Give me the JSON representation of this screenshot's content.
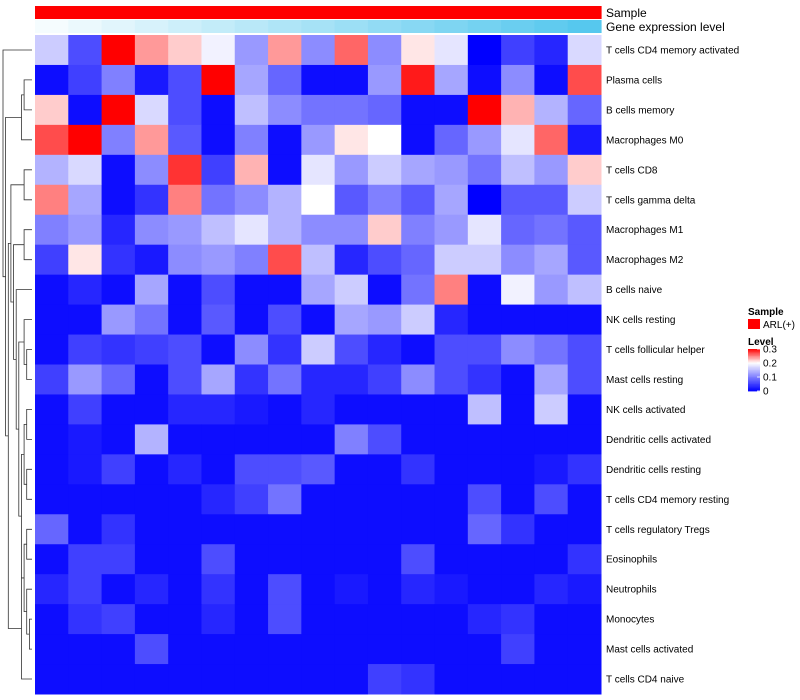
{
  "chart_data": {
    "type": "heatmap",
    "annotations": [
      {
        "name": "Sample",
        "kind": "categorical",
        "color": "#ff0000"
      },
      {
        "name": "Gene expression level",
        "kind": "gradient",
        "from": "#ffffff",
        "to": "#56c8ee"
      }
    ],
    "rows": [
      {
        "label": "T cells CD4 memory activated",
        "values": [
          0.16,
          0.06,
          0.3,
          0.24,
          0.22,
          0.19,
          0.12,
          0.24,
          0.11,
          0.26,
          0.11,
          0.21,
          0.18,
          0.0,
          0.05,
          0.03,
          0.17
        ]
      },
      {
        "label": "Plasma cells",
        "values": [
          0.01,
          0.05,
          0.1,
          0.02,
          0.06,
          0.3,
          0.13,
          0.08,
          0.01,
          0.01,
          0.12,
          0.29,
          0.13,
          0.01,
          0.11,
          0.01,
          0.27
        ]
      },
      {
        "label": "B cells memory",
        "values": [
          0.22,
          0.01,
          0.3,
          0.17,
          0.06,
          0.01,
          0.15,
          0.11,
          0.09,
          0.09,
          0.08,
          0.01,
          0.01,
          0.3,
          0.23,
          0.14,
          0.08
        ]
      },
      {
        "label": "Macrophages M0",
        "values": [
          0.27,
          0.3,
          0.1,
          0.24,
          0.07,
          0.01,
          0.1,
          0.01,
          0.12,
          0.21,
          0.2,
          0.01,
          0.08,
          0.12,
          0.18,
          0.26,
          0.02
        ]
      },
      {
        "label": "T cells CD8",
        "values": [
          0.14,
          0.17,
          0.01,
          0.11,
          0.28,
          0.05,
          0.23,
          0.01,
          0.18,
          0.12,
          0.16,
          0.13,
          0.12,
          0.09,
          0.15,
          0.12,
          0.22
        ]
      },
      {
        "label": "T cells gamma delta",
        "values": [
          0.25,
          0.13,
          0.01,
          0.04,
          0.25,
          0.09,
          0.11,
          0.14,
          0.2,
          0.07,
          0.1,
          0.07,
          0.13,
          0.0,
          0.07,
          0.07,
          0.16
        ]
      },
      {
        "label": "Macrophages M1",
        "values": [
          0.1,
          0.12,
          0.03,
          0.11,
          0.12,
          0.15,
          0.18,
          0.14,
          0.11,
          0.11,
          0.22,
          0.1,
          0.12,
          0.18,
          0.08,
          0.09,
          0.07
        ]
      },
      {
        "label": "Macrophages M2",
        "values": [
          0.05,
          0.21,
          0.04,
          0.02,
          0.11,
          0.12,
          0.1,
          0.27,
          0.15,
          0.03,
          0.06,
          0.08,
          0.16,
          0.16,
          0.11,
          0.13,
          0.07
        ]
      },
      {
        "label": "B cells naive",
        "values": [
          0.01,
          0.03,
          0.01,
          0.13,
          0.01,
          0.06,
          0.01,
          0.01,
          0.13,
          0.16,
          0.01,
          0.09,
          0.25,
          0.01,
          0.19,
          0.12,
          0.15
        ]
      },
      {
        "label": "NK cells resting",
        "values": [
          0.01,
          0.01,
          0.12,
          0.09,
          0.01,
          0.07,
          0.01,
          0.06,
          0.01,
          0.13,
          0.12,
          0.16,
          0.03,
          0.01,
          0.01,
          0.01,
          0.01
        ]
      },
      {
        "label": "T cells follicular helper",
        "values": [
          0.01,
          0.05,
          0.04,
          0.05,
          0.06,
          0.01,
          0.11,
          0.04,
          0.16,
          0.06,
          0.03,
          0.01,
          0.06,
          0.06,
          0.11,
          0.09,
          0.06
        ]
      },
      {
        "label": "Mast cells resting",
        "values": [
          0.05,
          0.12,
          0.08,
          0.01,
          0.06,
          0.13,
          0.04,
          0.09,
          0.03,
          0.03,
          0.05,
          0.11,
          0.06,
          0.04,
          0.01,
          0.13,
          0.06
        ]
      },
      {
        "label": "NK cells activated",
        "values": [
          0.01,
          0.05,
          0.01,
          0.01,
          0.03,
          0.03,
          0.02,
          0.01,
          0.03,
          0.01,
          0.01,
          0.01,
          0.01,
          0.15,
          0.01,
          0.16,
          0.01
        ]
      },
      {
        "label": "Dendritic cells activated",
        "values": [
          0.01,
          0.02,
          0.01,
          0.14,
          0.01,
          0.01,
          0.01,
          0.01,
          0.01,
          0.1,
          0.06,
          0.01,
          0.01,
          0.01,
          0.01,
          0.01,
          0.01
        ]
      },
      {
        "label": "Dendritic cells resting",
        "values": [
          0.01,
          0.02,
          0.05,
          0.01,
          0.03,
          0.01,
          0.06,
          0.06,
          0.07,
          0.01,
          0.01,
          0.04,
          0.01,
          0.01,
          0.01,
          0.02,
          0.04
        ]
      },
      {
        "label": "T cells CD4 memory resting",
        "values": [
          0.01,
          0.01,
          0.01,
          0.01,
          0.01,
          0.03,
          0.05,
          0.09,
          0.01,
          0.01,
          0.01,
          0.01,
          0.01,
          0.06,
          0.01,
          0.06,
          0.01
        ]
      },
      {
        "label": "T cells regulatory  Tregs",
        "values": [
          0.08,
          0.01,
          0.04,
          0.01,
          0.01,
          0.01,
          0.01,
          0.01,
          0.01,
          0.01,
          0.01,
          0.01,
          0.01,
          0.08,
          0.04,
          0.01,
          0.01
        ]
      },
      {
        "label": "Eosinophils",
        "values": [
          0.01,
          0.05,
          0.05,
          0.01,
          0.01,
          0.06,
          0.01,
          0.01,
          0.01,
          0.01,
          0.01,
          0.06,
          0.01,
          0.01,
          0.01,
          0.01,
          0.04
        ]
      },
      {
        "label": "Neutrophils",
        "values": [
          0.03,
          0.05,
          0.01,
          0.03,
          0.01,
          0.04,
          0.01,
          0.06,
          0.01,
          0.02,
          0.01,
          0.03,
          0.02,
          0.01,
          0.01,
          0.03,
          0.02
        ]
      },
      {
        "label": "Monocytes",
        "values": [
          0.01,
          0.04,
          0.05,
          0.01,
          0.01,
          0.03,
          0.01,
          0.06,
          0.01,
          0.01,
          0.01,
          0.01,
          0.01,
          0.03,
          0.04,
          0.01,
          0.01
        ]
      },
      {
        "label": "Mast cells activated",
        "values": [
          0.01,
          0.01,
          0.01,
          0.06,
          0.01,
          0.01,
          0.01,
          0.01,
          0.01,
          0.01,
          0.01,
          0.01,
          0.01,
          0.01,
          0.05,
          0.01,
          0.01
        ]
      },
      {
        "label": "T cells CD4 naive",
        "values": [
          0.01,
          0.01,
          0.01,
          0.01,
          0.01,
          0.01,
          0.01,
          0.01,
          0.01,
          0.01,
          0.05,
          0.04,
          0.01,
          0.01,
          0.01,
          0.01,
          0.01
        ]
      }
    ],
    "color_scale": {
      "min": 0,
      "mid": 0.2,
      "max": 0.3,
      "low": "#0000ff",
      "mid_color": "#ffffff",
      "high": "#ff0000"
    },
    "dendrogram": {
      "merges": [
        [
          -20,
          -21
        ],
        [
          -19,
          1
        ],
        [
          -17,
          -18
        ],
        [
          -15,
          -16
        ],
        [
          -13,
          -14
        ],
        [
          -11,
          -12
        ],
        [
          -10,
          6
        ],
        [
          -7,
          -8
        ],
        [
          -5,
          -6
        ],
        [
          -2,
          -3
        ],
        [
          2,
          3
        ],
        [
          4,
          5
        ],
        [
          11,
          12
        ],
        [
          7,
          13
        ],
        [
          -9,
          14
        ],
        [
          15,
          8
        ],
        [
          16,
          9
        ],
        [
          -22,
          11
        ],
        [
          17,
          18
        ],
        [
          -4,
          10
        ],
        [
          19,
          20
        ],
        [
          -1,
          21
        ]
      ],
      "heights": [
        1,
        2,
        2,
        2,
        2,
        2,
        3,
        3,
        3,
        3,
        3,
        3,
        4,
        5,
        6,
        7,
        8,
        4,
        9,
        4,
        10,
        11
      ]
    },
    "legend": {
      "sample_title": "Sample",
      "sample_entry": "ARL(+)",
      "level_title": "Level",
      "level_ticks": [
        {
          "value": 0.3,
          "label": "0.3"
        },
        {
          "value": 0.2,
          "label": "0.2"
        },
        {
          "value": 0.1,
          "label": "0.1"
        },
        {
          "value": 0,
          "label": "0"
        }
      ]
    }
  }
}
